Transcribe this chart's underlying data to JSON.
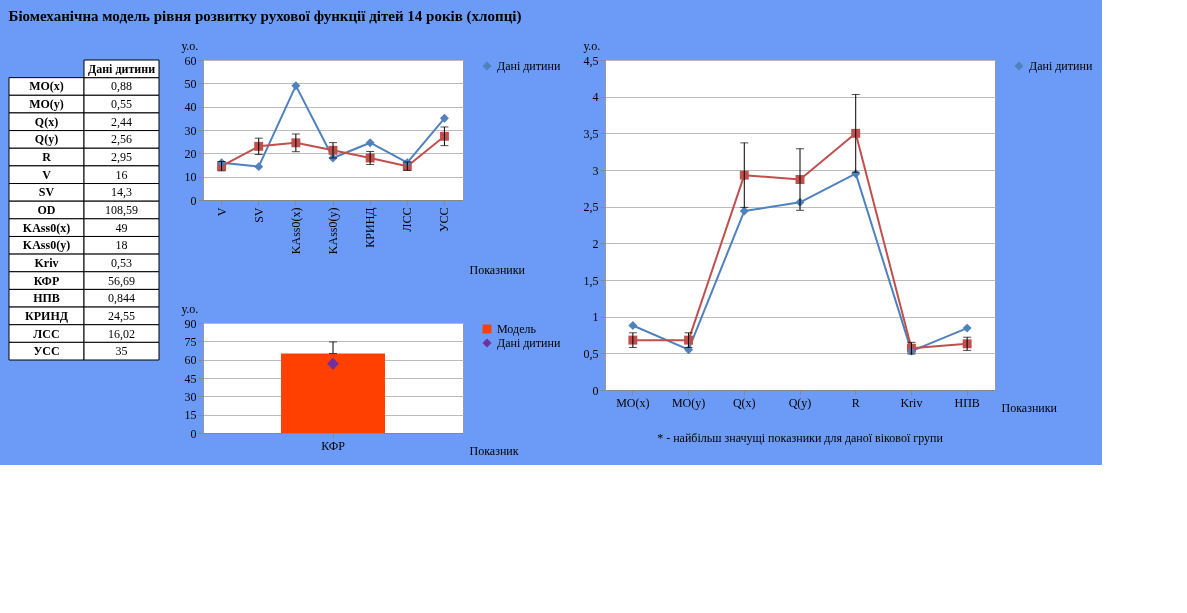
{
  "chart_data": [
    {
      "type": "other",
      "title": "Біомеханічна модель рівня розвитку рухової функції дітей 14 років (хлопці)",
      "xlabel": "Дані дитини",
      "categories": [
        "MO(x)",
        "MO(y)",
        "Q(x)",
        "Q(y)",
        "R",
        "V",
        "SV",
        "OD",
        "KAss0(x)",
        "KAss0(y)",
        "Kriv",
        "КФР",
        "НПВ",
        "КРИНД",
        "ЛСС",
        "УСС"
      ],
      "value_labels": [
        "0,88",
        "0,55",
        "2,44",
        "2,56",
        "2,95",
        "16",
        "14,3",
        "108,59",
        "49",
        "18",
        "0,53",
        "56,69",
        "0,844",
        "24,55",
        "16,02",
        "35"
      ]
    },
    {
      "type": "line",
      "ylabel": "у.о.",
      "xlabel": "Показники",
      "categories": [
        "V",
        "SV",
        "KAss0(x)",
        "KAss0(y)",
        "КРИНД",
        "ЛСС",
        "УСС"
      ],
      "ylim": [
        0,
        60
      ],
      "yticks": [
        0,
        10,
        20,
        30,
        40,
        50,
        60
      ],
      "grid": "y",
      "legend": "right",
      "series": [
        {
          "name": "Дані дитини",
          "color": "#4f81bd",
          "marker": "diamond",
          "values": [
            16,
            14.3,
            49,
            18,
            24.55,
            16.02,
            35
          ]
        },
        {
          "color": "#c0504d",
          "marker": "square",
          "values": [
            14.5,
            23,
            24.5,
            21.3,
            18,
            14.5,
            27.3
          ],
          "errors": [
            2,
            3.5,
            3.8,
            3.3,
            2.8,
            1.8,
            4
          ]
        }
      ]
    },
    {
      "type": "bar",
      "ylabel": "у.о.",
      "xlabel": "Показник",
      "categories": [
        "КФР"
      ],
      "ylim": [
        0,
        90
      ],
      "yticks": [
        0,
        15,
        30,
        45,
        60,
        75,
        90
      ],
      "grid": "y",
      "legend": "right",
      "series": [
        {
          "name": "Модель",
          "type": "bar",
          "color": "#ff4000",
          "values": [
            65
          ],
          "errors": [
            [
              65,
              74.5
            ]
          ]
        },
        {
          "name": "Дані дитини",
          "type": "scatter",
          "color": "#7030a0",
          "marker": "diamond",
          "values": [
            56.69
          ]
        }
      ]
    },
    {
      "type": "line",
      "ylabel": "у.о.",
      "xlabel": "Показники",
      "categories": [
        "MO(x)",
        "MO(y)",
        "Q(x)",
        "Q(y)",
        "R",
        "Kriv",
        "НПВ"
      ],
      "ylim": [
        0,
        4.5
      ],
      "yticks": [
        0,
        {
          "value": 0.5,
          "label": "0,5"
        },
        1,
        {
          "value": 1.5,
          "label": "1,5"
        },
        2,
        {
          "value": 2.5,
          "label": "2,5"
        },
        3,
        {
          "value": 3.5,
          "label": "3,5"
        },
        4,
        {
          "value": 4.5,
          "label": "4,5"
        }
      ],
      "grid": "y",
      "legend": "right",
      "annotations": [
        "* - найбільш значущі показники для даної вікової групи"
      ],
      "series": [
        {
          "name": "Дані дитини",
          "color": "#4f81bd",
          "marker": "diamond",
          "values": [
            0.88,
            0.55,
            2.44,
            2.56,
            2.95,
            0.53,
            0.844
          ]
        },
        {
          "color": "#c0504d",
          "marker": "square",
          "values": [
            0.68,
            0.68,
            2.93,
            2.87,
            3.5,
            0.57,
            0.63
          ],
          "errors": [
            0.1,
            0.1,
            0.44,
            0.42,
            0.53,
            0.08,
            0.09
          ]
        }
      ]
    }
  ]
}
